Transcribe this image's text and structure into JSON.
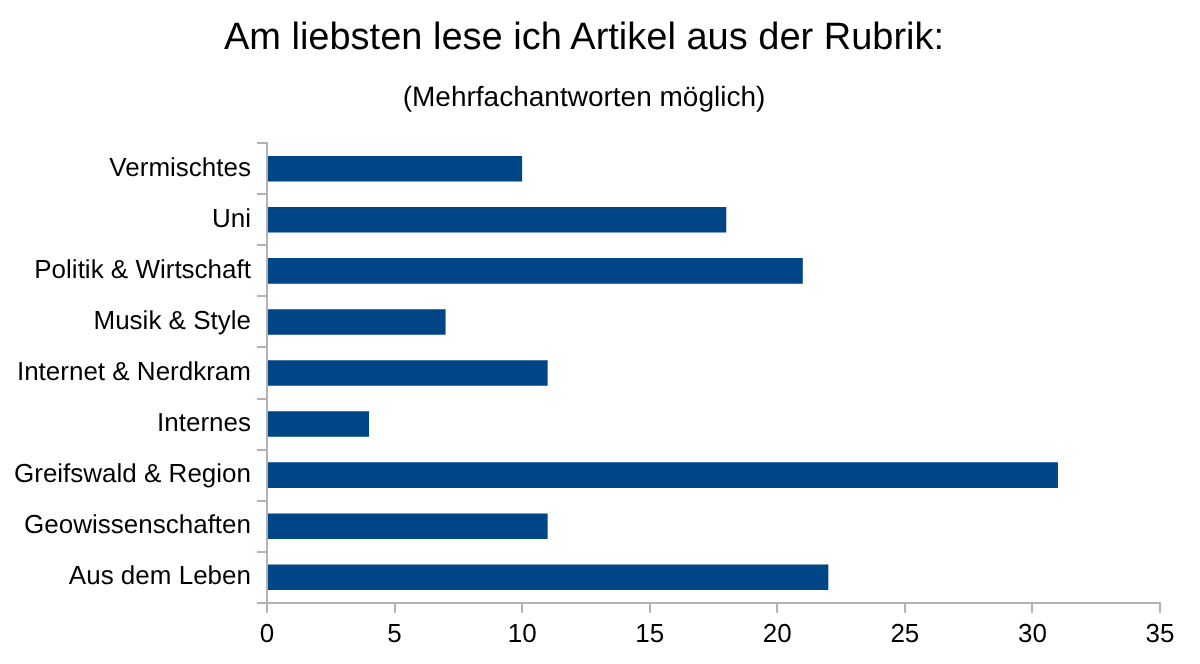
{
  "chart_data": {
    "type": "bar",
    "orientation": "horizontal",
    "title": "Am liebsten lese ich Artikel aus der Rubrik:",
    "subtitle": "(Mehrfachantworten möglich)",
    "categories": [
      "Vermischtes",
      "Uni",
      "Politik & Wirtschaft",
      "Musik & Style",
      "Internet & Nerdkram",
      "Internes",
      "Greifswald & Region",
      "Geowissenschaften",
      "Aus dem Leben"
    ],
    "values": [
      10,
      18,
      21,
      7,
      11,
      4,
      31,
      11,
      22
    ],
    "color": "#004586",
    "xlim": [
      0,
      35
    ],
    "xticks": [
      0,
      5,
      10,
      15,
      20,
      25,
      30,
      35
    ],
    "grid": false,
    "legend": false
  }
}
